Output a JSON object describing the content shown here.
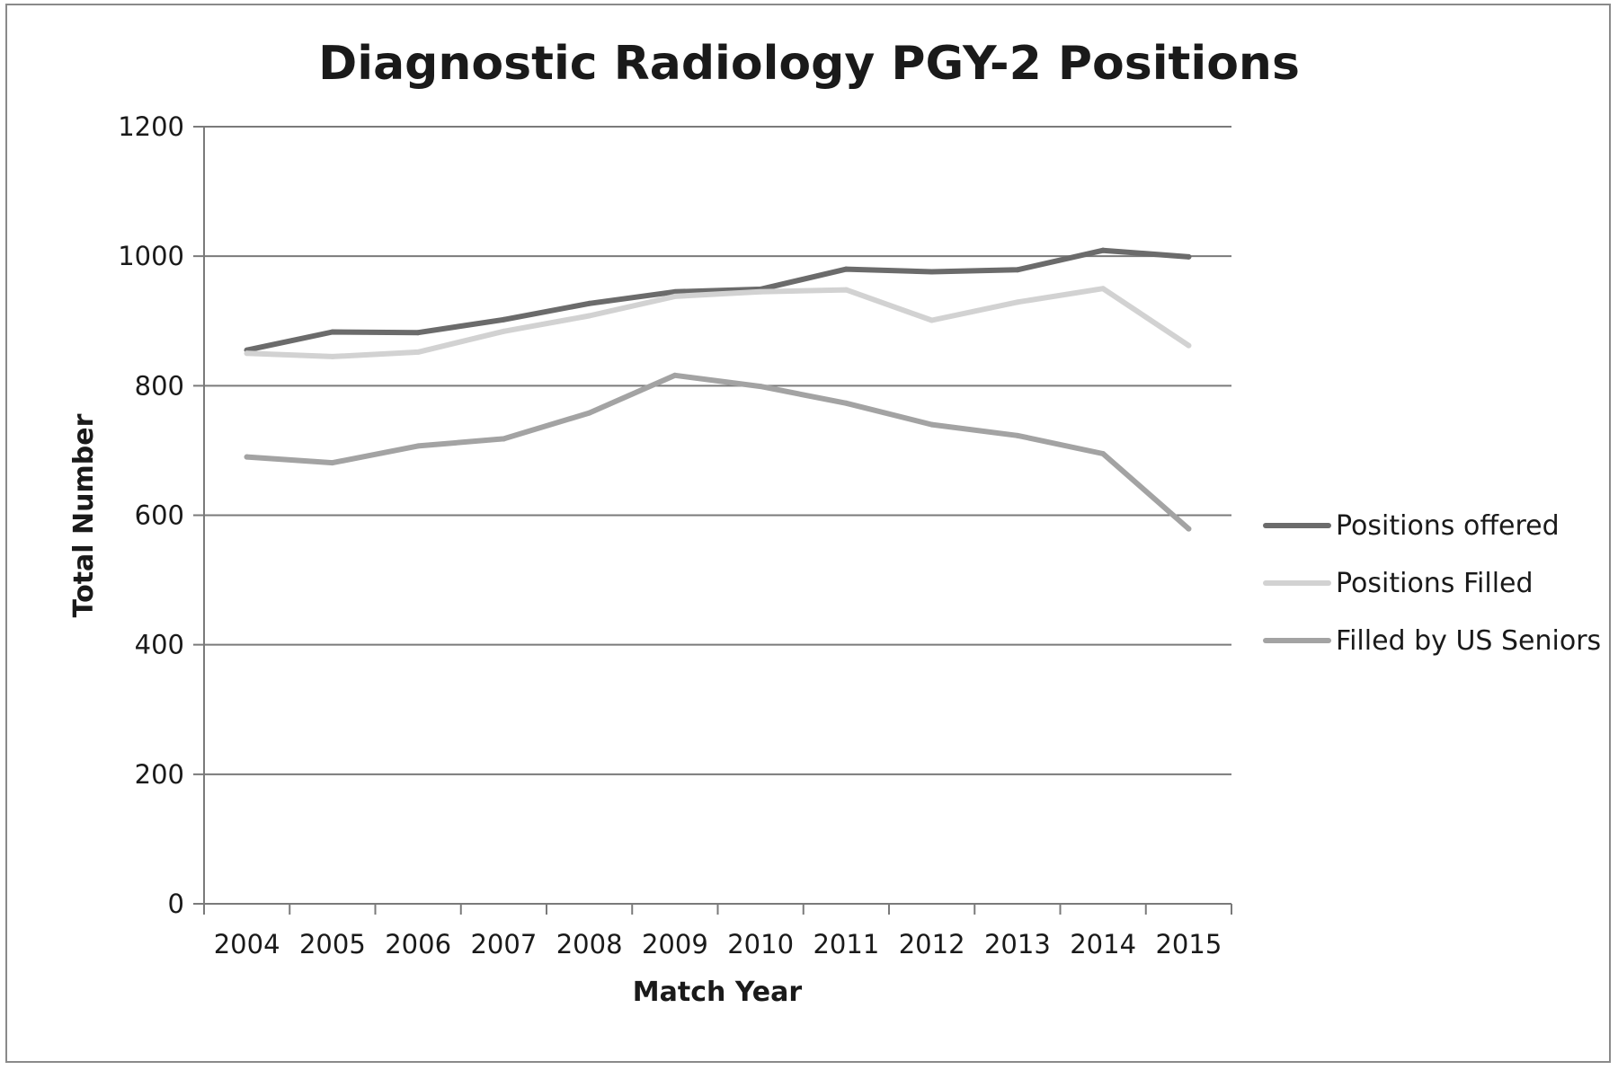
{
  "chart_data": {
    "type": "line",
    "title": "Diagnostic Radiology PGY-2 Positions",
    "xlabel": "Match Year",
    "ylabel": "Total Number",
    "categories": [
      "2004",
      "2005",
      "2006",
      "2007",
      "2008",
      "2009",
      "2010",
      "2011",
      "2012",
      "2013",
      "2014",
      "2015"
    ],
    "ylim": [
      0,
      1200
    ],
    "yticks": [
      0,
      200,
      400,
      600,
      800,
      1000,
      1200
    ],
    "grid": true,
    "legend_position": "right",
    "series": [
      {
        "name": "Positions offered",
        "color": "#6b6b6b",
        "values": [
          855,
          883,
          882,
          902,
          927,
          945,
          949,
          980,
          976,
          979,
          1009,
          999
        ]
      },
      {
        "name": "Positions Filled",
        "color": "#d2d2d2",
        "values": [
          850,
          845,
          852,
          884,
          908,
          938,
          945,
          948,
          901,
          929,
          950,
          862
        ]
      },
      {
        "name": "Filled by US Seniors",
        "color": "#a3a3a3",
        "values": [
          690,
          681,
          707,
          718,
          758,
          816,
          799,
          773,
          740,
          723,
          695,
          579
        ]
      }
    ]
  }
}
